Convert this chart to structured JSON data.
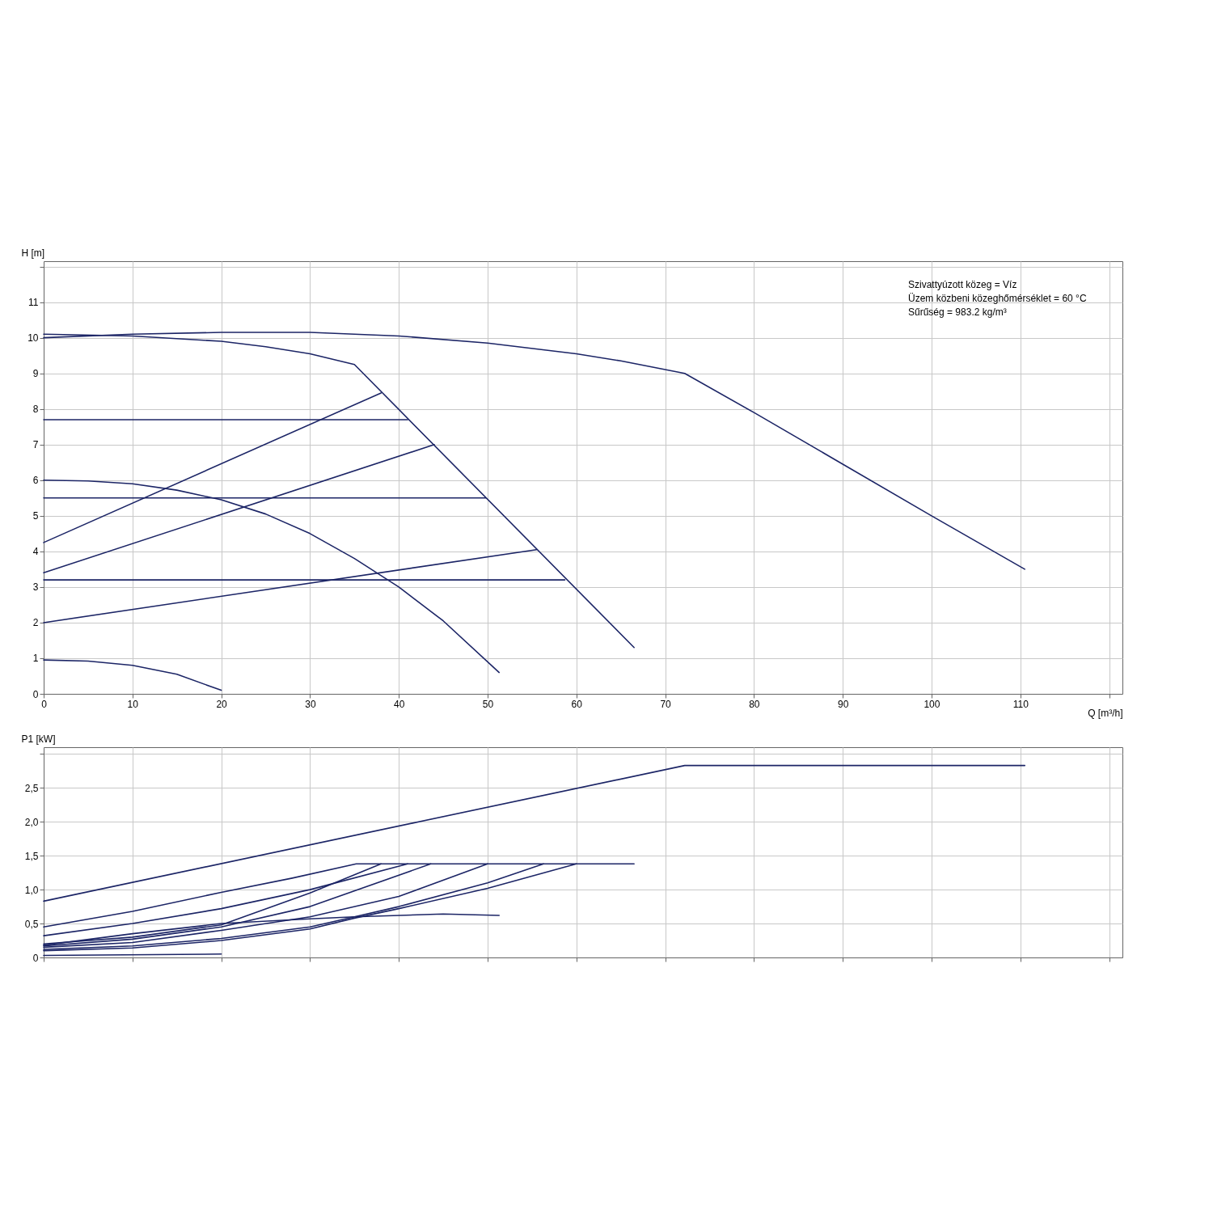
{
  "chart_data": [
    {
      "type": "line",
      "ylabel": "H [m]",
      "xlabel": "Q [m³/h]",
      "xlim": [
        0,
        121.5
      ],
      "ylim": [
        0,
        12.15
      ],
      "xticks": [
        0,
        10,
        20,
        30,
        40,
        50,
        60,
        70,
        80,
        90,
        100,
        110,
        {
          "value": 120,
          "label": null
        }
      ],
      "yticks": [
        0,
        1,
        2,
        3,
        4,
        5,
        6,
        7,
        8,
        9,
        10,
        11,
        {
          "value": 12,
          "label": null
        }
      ],
      "grid": true,
      "annotations": [
        "Szivattyúzott közeg = Víz",
        "Üzem közbeni közeghőmérséklet = 60 °C",
        "Sűrűség = 983.2 kg/m³"
      ],
      "series": [
        {
          "color": "#1c2566",
          "x": [
            0,
            10,
            20,
            30,
            40,
            50,
            60,
            65,
            72.2,
            80,
            90,
            100,
            110.5
          ],
          "values": [
            10.0,
            10.1,
            10.15,
            10.15,
            10.05,
            9.85,
            9.55,
            9.35,
            9.0,
            7.9,
            6.45,
            5.0,
            3.5
          ]
        },
        {
          "color": "#1c2566",
          "x": [
            0,
            10,
            20,
            25,
            30,
            35,
            66.5
          ],
          "values": [
            10.1,
            10.05,
            9.9,
            9.75,
            9.55,
            9.25,
            1.3
          ]
        },
        {
          "color": "#1c2566",
          "x": [
            0,
            38
          ],
          "values": [
            4.25,
            8.45
          ]
        },
        {
          "color": "#1c2566",
          "x": [
            0,
            44
          ],
          "values": [
            3.4,
            7.0
          ]
        },
        {
          "color": "#1c2566",
          "x": [
            0,
            55.5
          ],
          "values": [
            2.0,
            4.05
          ]
        },
        {
          "color": "#1c2566",
          "x": [
            0,
            41
          ],
          "values": [
            7.7,
            7.7
          ]
        },
        {
          "color": "#1c2566",
          "x": [
            0,
            49.8
          ],
          "values": [
            5.5,
            5.5
          ]
        },
        {
          "color": "#1c2566",
          "x": [
            0,
            58.7
          ],
          "values": [
            3.2,
            3.2
          ]
        },
        {
          "color": "#1c2566",
          "x": [
            0,
            5,
            10,
            15,
            20,
            25,
            30,
            35,
            40,
            45,
            51.3
          ],
          "values": [
            6.0,
            5.98,
            5.9,
            5.72,
            5.45,
            5.05,
            4.5,
            3.8,
            3.0,
            2.05,
            0.6
          ]
        },
        {
          "color": "#1c2566",
          "x": [
            0,
            5,
            10,
            15,
            20
          ],
          "values": [
            0.95,
            0.92,
            0.8,
            0.55,
            0.1
          ]
        }
      ]
    },
    {
      "type": "line",
      "ylabel": "P1 [kW]",
      "xlim": [
        0,
        121.5
      ],
      "ylim": [
        0,
        3.1
      ],
      "xticks": [
        0,
        10,
        20,
        30,
        40,
        50,
        60,
        70,
        80,
        90,
        100,
        110,
        120
      ],
      "yticks": [
        0,
        {
          "value": 0.5,
          "label": "0,5"
        },
        {
          "value": 1,
          "label": "1,0"
        },
        {
          "value": 1.5,
          "label": "1,5"
        },
        {
          "value": 2,
          "label": "2,0"
        },
        {
          "value": 2.5,
          "label": "2,5"
        },
        {
          "value": 3,
          "label": null
        }
      ],
      "grid": true,
      "tick_labels": "y",
      "series": [
        {
          "color": "#1c2566",
          "x": [
            0,
            72.2,
            110.5
          ],
          "values": [
            0.83,
            2.83,
            2.83
          ]
        },
        {
          "color": "#1c2566",
          "x": [
            0,
            10,
            20,
            28,
            35.2,
            66.5
          ],
          "values": [
            0.45,
            0.68,
            0.96,
            1.17,
            1.38,
            1.38
          ]
        },
        {
          "color": "#1c2566",
          "x": [
            0,
            10,
            20,
            30,
            41
          ],
          "values": [
            0.32,
            0.5,
            0.72,
            1.0,
            1.38
          ]
        },
        {
          "color": "#1c2566",
          "x": [
            0,
            10,
            20,
            30,
            38
          ],
          "values": [
            0.2,
            0.3,
            0.48,
            0.95,
            1.38
          ]
        },
        {
          "color": "#1c2566",
          "x": [
            0,
            10,
            20,
            30,
            43.6
          ],
          "values": [
            0.17,
            0.27,
            0.45,
            0.75,
            1.38
          ]
        },
        {
          "color": "#1c2566",
          "x": [
            0,
            10,
            20,
            30,
            40,
            50
          ],
          "values": [
            0.15,
            0.22,
            0.4,
            0.6,
            0.9,
            1.38
          ]
        },
        {
          "color": "#1c2566",
          "x": [
            0,
            10,
            20,
            30,
            35,
            40,
            50,
            56.3
          ],
          "values": [
            0.12,
            0.17,
            0.28,
            0.45,
            0.6,
            0.75,
            1.1,
            1.38
          ]
        },
        {
          "color": "#1c2566",
          "x": [
            0,
            10,
            20,
            30,
            35,
            40,
            50,
            60
          ],
          "values": [
            0.1,
            0.14,
            0.25,
            0.42,
            0.58,
            0.72,
            1.02,
            1.38
          ]
        },
        {
          "color": "#1c2566",
          "x": [
            0,
            10,
            20,
            30,
            35,
            45,
            51.3
          ],
          "values": [
            0.18,
            0.35,
            0.5,
            0.57,
            0.6,
            0.64,
            0.62
          ]
        },
        {
          "color": "#1c2566",
          "x": [
            0,
            20
          ],
          "values": [
            0.03,
            0.05
          ]
        }
      ]
    }
  ]
}
